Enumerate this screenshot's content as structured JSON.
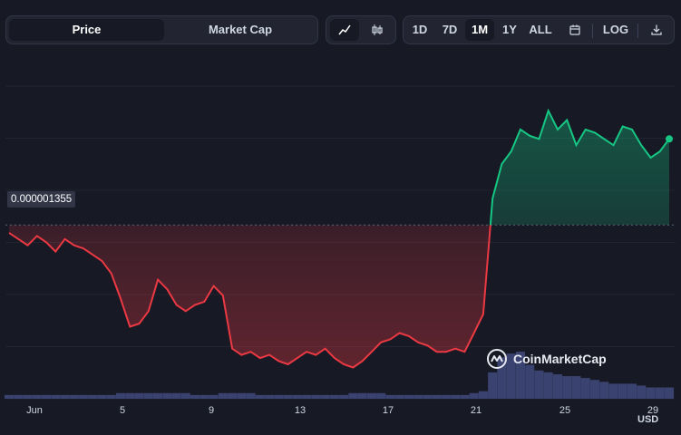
{
  "tabs": {
    "price": "Price",
    "market_cap": "Market Cap",
    "active": "Price"
  },
  "chart_type_buttons": [
    {
      "icon": "line-chart-icon",
      "active": true
    },
    {
      "icon": "candlestick-icon",
      "active": false
    }
  ],
  "ranges": {
    "d1": "1D",
    "d7": "7D",
    "m1": "1M",
    "y1": "1Y",
    "all": "ALL",
    "active": "1M"
  },
  "log_label": "LOG",
  "icons": {
    "calendar": "calendar-icon",
    "download": "download-icon"
  },
  "price_label": "0.000001355",
  "watermark": "CoinMarketCap",
  "currency": "USD",
  "colors": {
    "background": "#171924",
    "down": "#ea3943",
    "up": "#16c784",
    "volume": "#3a4270",
    "grid": "#222531"
  },
  "chart_data": {
    "type": "line",
    "x_ticks": [
      "Jun",
      "5",
      "9",
      "13",
      "17",
      "21",
      "25",
      "29"
    ],
    "baseline": 1.355e-06,
    "y_reference_label": "0.000001355",
    "grid": true,
    "series": [
      {
        "values": [
          1.33e-06,
          1.31e-06,
          1.29e-06,
          1.32e-06,
          1.3e-06,
          1.27e-06,
          1.31e-06,
          1.29e-06,
          1.28e-06,
          1.26e-06,
          1.24e-06,
          1.2e-06,
          1.12e-06,
          1.03e-06,
          1.04e-06,
          1.08e-06,
          1.18e-06,
          1.15e-06,
          1.1e-06,
          1.08e-06,
          1.1e-06,
          1.11e-06,
          1.16e-06,
          1.13e-06,
          9.6e-07,
          9.4e-07,
          9.5e-07,
          9.3e-07,
          9.4e-07,
          9.2e-07,
          9.1e-07,
          9.3e-07,
          9.5e-07,
          9.4e-07,
          9.6e-07,
          9.3e-07,
          9.1e-07,
          9e-07,
          9.2e-07,
          9.5e-07,
          9.8e-07,
          9.9e-07,
          1.01e-06,
          1e-06,
          9.8e-07,
          9.7e-07,
          9.5e-07,
          9.5e-07,
          9.6e-07,
          9.5e-07,
          1.01e-06,
          1.07e-06,
          1.44e-06,
          1.55e-06,
          1.59e-06,
          1.66e-06,
          1.64e-06,
          1.63e-06,
          1.72e-06,
          1.66e-06,
          1.69e-06,
          1.61e-06,
          1.66e-06,
          1.65e-06,
          1.63e-06,
          1.61e-06,
          1.67e-06,
          1.66e-06,
          1.61e-06,
          1.57e-06,
          1.59e-06,
          1.63e-06
        ]
      }
    ],
    "volume": [
      2,
      2,
      2,
      2,
      2,
      2,
      2,
      2,
      2,
      2,
      2,
      2,
      3,
      3,
      3,
      3,
      3,
      3,
      3,
      3,
      2,
      2,
      2,
      3,
      3,
      3,
      3,
      2,
      2,
      2,
      2,
      2,
      2,
      2,
      2,
      2,
      2,
      3,
      3,
      3,
      3,
      2,
      2,
      2,
      2,
      2,
      2,
      2,
      2,
      2,
      3,
      4,
      14,
      22,
      24,
      25,
      18,
      15,
      14,
      13,
      12,
      12,
      11,
      10,
      9,
      8,
      8,
      8,
      7,
      6,
      6,
      6
    ]
  }
}
